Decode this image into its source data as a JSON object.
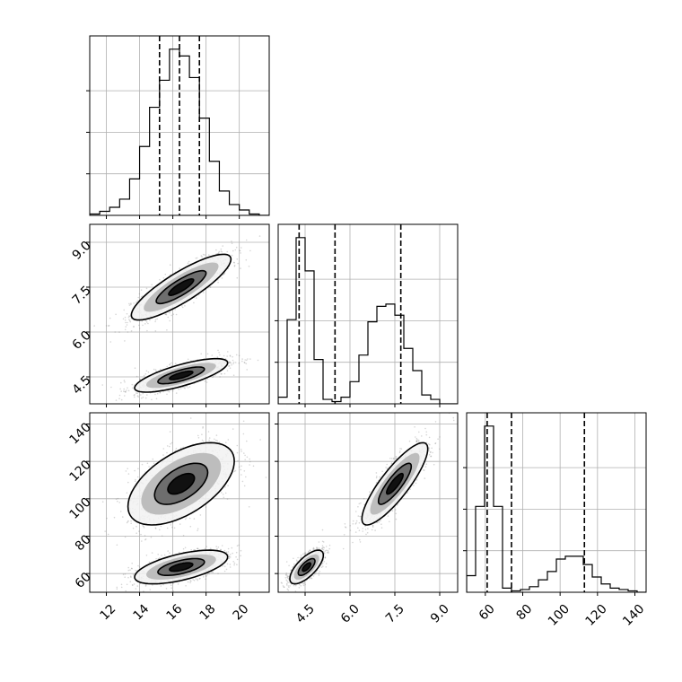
{
  "figure": {
    "title": "",
    "background": "#ffffff",
    "contour_fills": [
      "#f2f2f2",
      "#bdbdbd",
      "#6e6e6e",
      "#111111"
    ],
    "point_color": "#8a8a8a"
  },
  "chart_data": {
    "type": "corner",
    "grid": true,
    "parameters": [
      {
        "label": "",
        "range": [
          11.0,
          21.8
        ],
        "ticks": [
          12,
          14,
          16,
          18,
          20
        ],
        "tick_labels": [
          "12",
          "14",
          "16",
          "18",
          "20"
        ],
        "bin_edges": [
          11.0,
          11.6,
          12.2,
          12.8,
          13.4,
          14.0,
          14.6,
          15.2,
          15.8,
          16.4,
          17.0,
          17.6,
          18.2,
          18.8,
          19.4,
          20.0,
          20.6,
          21.2,
          21.8
        ],
        "counts": [
          1,
          3,
          6,
          12,
          27,
          51,
          80,
          100,
          123,
          118,
          102,
          72,
          40,
          18,
          8,
          4,
          1,
          0
        ],
        "quantiles": [
          15.2,
          16.4,
          17.6
        ]
      },
      {
        "label": "",
        "range": [
          3.6,
          9.6
        ],
        "ticks": [
          4.5,
          6.0,
          7.5,
          9.0
        ],
        "tick_labels": [
          "4.5",
          "6.0",
          "7.5",
          "9.0"
        ],
        "bin_edges": [
          3.6,
          3.9,
          4.2,
          4.5,
          4.8,
          5.1,
          5.4,
          5.7,
          6.0,
          6.3,
          6.6,
          6.9,
          7.2,
          7.5,
          7.8,
          8.1,
          8.4,
          8.7,
          9.0,
          9.3,
          9.6
        ],
        "counts": [
          3,
          38,
          75,
          60,
          20,
          2,
          1,
          3,
          10,
          22,
          37,
          44,
          45,
          40,
          25,
          15,
          4,
          2,
          0,
          0
        ],
        "quantiles": [
          4.3,
          5.5,
          7.7
        ]
      },
      {
        "label": "",
        "range": [
          50,
          146
        ],
        "ticks": [
          60,
          80,
          100,
          120,
          140
        ],
        "tick_labels": [
          "60",
          "80",
          "100",
          "120",
          "140"
        ],
        "bin_edges": [
          50,
          54.8,
          59.6,
          64.4,
          69.2,
          74.0,
          78.8,
          83.6,
          88.4,
          93.2,
          98.0,
          102.8,
          107.6,
          112.4,
          117.2,
          122.0,
          126.8,
          131.6,
          136.4,
          141.2,
          146.0
        ],
        "counts": [
          12,
          62,
          120,
          62,
          3,
          1,
          2,
          4,
          9,
          15,
          24,
          26,
          26,
          20,
          11,
          6,
          3,
          2,
          1,
          0
        ],
        "quantiles": [
          61,
          74,
          113
        ]
      }
    ],
    "pairs": [
      {
        "x_param": 0,
        "y_param": 1,
        "modes": [
          {
            "mean": [
              16.5,
              7.5
            ],
            "sd": [
              1.5,
              0.55
            ],
            "corr": 0.85,
            "weight": 0.5
          },
          {
            "mean": [
              16.5,
              4.55
            ],
            "sd": [
              1.4,
              0.28
            ],
            "corr": 0.75,
            "weight": 0.5
          }
        ]
      },
      {
        "x_param": 0,
        "y_param": 2,
        "modes": [
          {
            "mean": [
              16.5,
              108.0
            ],
            "sd": [
              1.6,
              11.0
            ],
            "corr": 0.55,
            "weight": 0.5
          },
          {
            "mean": [
              16.5,
              63.5
            ],
            "sd": [
              1.4,
              4.5
            ],
            "corr": 0.6,
            "weight": 0.5
          }
        ]
      },
      {
        "x_param": 1,
        "y_param": 2,
        "modes": [
          {
            "mean": [
              7.5,
              108.0
            ],
            "sd": [
              0.55,
              11.0
            ],
            "corr": 0.85,
            "weight": 0.5
          },
          {
            "mean": [
              4.55,
              63.5
            ],
            "sd": [
              0.28,
              4.5
            ],
            "corr": 0.7,
            "weight": 0.5
          }
        ]
      }
    ],
    "contour_levels_sigma": [
      0.5,
      1.0,
      1.5,
      2.0
    ]
  }
}
